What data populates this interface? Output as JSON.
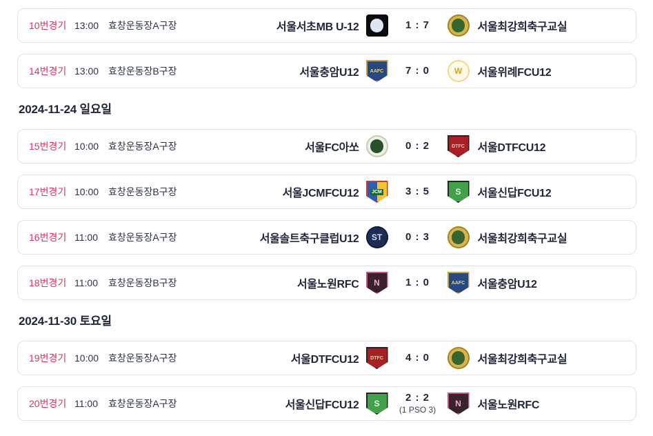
{
  "colors": {
    "accent_match_number": "#ee2b5b",
    "card_border": "#e2e2e2",
    "text_dark": "#1e2638"
  },
  "sections": [
    {
      "matches": [
        {
          "num": "10번경기",
          "time": "13:00",
          "venue": "효창운동장A구장",
          "home": "서울서초MB U-12",
          "score": "1 : 7",
          "away": "서울최강희축구교실",
          "home_logo": "seochomb",
          "away_logo": "choikanghee"
        },
        {
          "num": "14번경기",
          "time": "13:00",
          "venue": "효창운동장B구장",
          "home": "서울충암U12",
          "score": "7 : 0",
          "away": "서울위례FCU12",
          "home_logo": "chungam",
          "away_logo": "wirye"
        }
      ]
    },
    {
      "date": "2024-11-24 일요일",
      "matches": [
        {
          "num": "15번경기",
          "time": "10:00",
          "venue": "효창운동장A구장",
          "home": "서울FC아쏘",
          "score": "0 : 2",
          "away": "서울DTFCU12",
          "home_logo": "asso",
          "away_logo": "dtfc"
        },
        {
          "num": "17번경기",
          "time": "10:00",
          "venue": "효창운동장B구장",
          "home": "서울JCMFCU12",
          "score": "3 : 5",
          "away": "서울신답FCU12",
          "home_logo": "jcm",
          "away_logo": "sindap"
        },
        {
          "num": "16번경기",
          "time": "11:00",
          "venue": "효창운동장A구장",
          "home": "서울솔트축구클럽U12",
          "score": "0 : 3",
          "away": "서울최강희축구교실",
          "home_logo": "salt",
          "away_logo": "choikanghee"
        },
        {
          "num": "18번경기",
          "time": "11:00",
          "venue": "효창운동장B구장",
          "home": "서울노원RFC",
          "score": "1 : 0",
          "away": "서울충암U12",
          "home_logo": "nowon",
          "away_logo": "chungam"
        }
      ]
    },
    {
      "date": "2024-11-30 토요일",
      "matches": [
        {
          "num": "19번경기",
          "time": "10:00",
          "venue": "효창운동장A구장",
          "home": "서울DTFCU12",
          "score": "4 : 0",
          "away": "서울최강희축구교실",
          "home_logo": "dtfc",
          "away_logo": "choikanghee"
        },
        {
          "num": "20번경기",
          "time": "11:00",
          "venue": "효창운동장A구장",
          "home": "서울신답FCU12",
          "score": "2 : 2",
          "score_sub": "(1 PSO 3)",
          "away": "서울노원RFC",
          "home_logo": "sindap",
          "away_logo": "nowon"
        }
      ]
    }
  ],
  "logos": {
    "seochomb": {
      "name": "seoul-seocho-mb-emblem-icon",
      "shape": "square",
      "bg": "#0c0c0e",
      "inner": "#dce6f2"
    },
    "choikanghee": {
      "name": "seoul-choikanghee-academy-emblem-icon",
      "shape": "circle",
      "bg": "#d8b54b",
      "border": "#a58427",
      "inner": "#33672f"
    },
    "chungam": {
      "name": "seoul-chungam-emblem-icon",
      "shape": "shield",
      "bg": "#27497f",
      "border": "#c9a23f",
      "text": "AAFC",
      "fg": "#edd27d"
    },
    "wirye": {
      "name": "seoul-wirye-fc-emblem-icon",
      "shape": "circle",
      "bg": "#fdf8e7",
      "border": "#ecd98e",
      "text": "W",
      "fg": "#d8a718"
    },
    "asso": {
      "name": "seoul-fc-asso-emblem-icon",
      "shape": "circle",
      "bg": "#edf1e4",
      "border": "#c2cfae",
      "inner": "#2a512e"
    },
    "dtfc": {
      "name": "seoul-dtfc-emblem-icon",
      "shape": "shield",
      "bg": "#a82025",
      "border": "#26221f",
      "text": "DTFC",
      "fg": "#f2d8a0"
    },
    "jcm": {
      "name": "seoul-jcm-fc-emblem-icon",
      "shape": "shield",
      "bg": "#2f5cb1",
      "bg2": "#f2c435",
      "border": "#cf3a38",
      "text": "JCM",
      "fg": "#ffffff",
      "textbg": "#1d6b33"
    },
    "sindap": {
      "name": "seoul-sindap-fc-emblem-icon",
      "shape": "shield",
      "bg": "#43a04b",
      "border": "#232323",
      "text": "S",
      "fg": "#dff3dc"
    },
    "salt": {
      "name": "seoul-salt-fc-emblem-icon",
      "shape": "circle",
      "bg": "#1d2d55",
      "border": "#121d3a",
      "text": "ST",
      "fg": "#d3dcef"
    },
    "nowon": {
      "name": "seoul-nowon-rfc-emblem-icon",
      "shape": "shield",
      "bg": "#39222e",
      "border": "#c6567f",
      "text": "N",
      "fg": "#eba9c4"
    }
  }
}
